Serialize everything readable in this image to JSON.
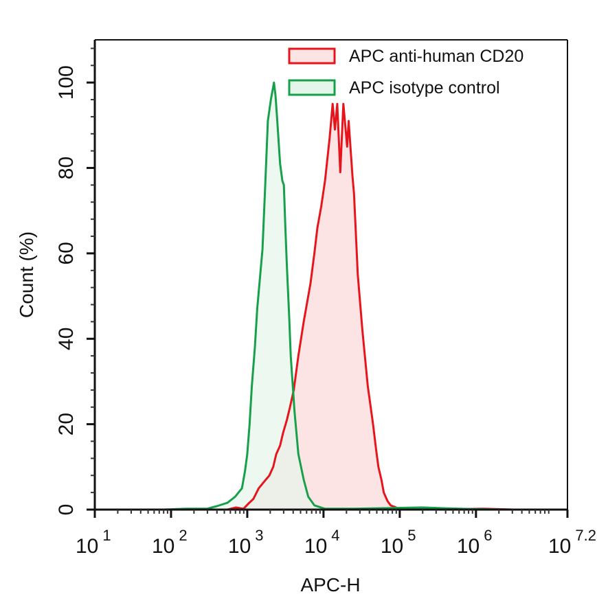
{
  "chart_data": {
    "type": "area",
    "title": "",
    "xlabel": "APC-H",
    "ylabel": "Count  (%)",
    "xscale": "log10",
    "xlim_log10": [
      1,
      7.2
    ],
    "ylim": [
      0,
      110
    ],
    "x_ticks": [
      {
        "base": "10",
        "exp": "1",
        "log": 1
      },
      {
        "base": "10",
        "exp": "2",
        "log": 2
      },
      {
        "base": "10",
        "exp": "3",
        "log": 3
      },
      {
        "base": "10",
        "exp": "4",
        "log": 4
      },
      {
        "base": "10",
        "exp": "5",
        "log": 5
      },
      {
        "base": "10",
        "exp": "6",
        "log": 6
      },
      {
        "base": "10",
        "exp": "7.2",
        "log": 7.2
      }
    ],
    "y_ticks": [
      0,
      20,
      40,
      60,
      80,
      100
    ],
    "grid": false,
    "legend": {
      "position": "top-right",
      "entries": [
        {
          "label": "APC anti-human CD20",
          "stroke": "#e8141c",
          "fill": "#fde4e4"
        },
        {
          "label": "APC isotype control",
          "stroke": "#16a04a",
          "fill": "#e4f5ea"
        }
      ]
    },
    "series": [
      {
        "name": "APC anti-human CD20",
        "stroke": "#e8141c",
        "fill": "#fde4e4",
        "points_log10x_y": [
          [
            2.74,
            0
          ],
          [
            2.85,
            0.5
          ],
          [
            2.95,
            0.2
          ],
          [
            3.02,
            1.5
          ],
          [
            3.08,
            2.5
          ],
          [
            3.15,
            5
          ],
          [
            3.22,
            6.5
          ],
          [
            3.29,
            8
          ],
          [
            3.34,
            10
          ],
          [
            3.38,
            13
          ],
          [
            3.43,
            15
          ],
          [
            3.47,
            18
          ],
          [
            3.52,
            21
          ],
          [
            3.56,
            24
          ],
          [
            3.61,
            28
          ],
          [
            3.67,
            36
          ],
          [
            3.74,
            44
          ],
          [
            3.78,
            48
          ],
          [
            3.83,
            53
          ],
          [
            3.88,
            60
          ],
          [
            3.92,
            66
          ],
          [
            3.97,
            71
          ],
          [
            4.02,
            77
          ],
          [
            4.08,
            87
          ],
          [
            4.12,
            95
          ],
          [
            4.15,
            89
          ],
          [
            4.18,
            95
          ],
          [
            4.22,
            79
          ],
          [
            4.26,
            95
          ],
          [
            4.31,
            85
          ],
          [
            4.33,
            91
          ],
          [
            4.38,
            78
          ],
          [
            4.4,
            74
          ],
          [
            4.45,
            55
          ],
          [
            4.51,
            42
          ],
          [
            4.58,
            29
          ],
          [
            4.65,
            20
          ],
          [
            4.69,
            14
          ],
          [
            4.72,
            10
          ],
          [
            4.76,
            7
          ],
          [
            4.79,
            4
          ],
          [
            4.84,
            2
          ],
          [
            4.88,
            1
          ],
          [
            4.95,
            0.5
          ],
          [
            5.01,
            0.2
          ],
          [
            5.3,
            0
          ],
          [
            6.1,
            0.2
          ],
          [
            6.5,
            0
          ]
        ]
      },
      {
        "name": "APC isotype control",
        "stroke": "#16a04a",
        "fill": "#e4f5ea",
        "points_log10x_y": [
          [
            1.9,
            0
          ],
          [
            2.2,
            0.2
          ],
          [
            2.47,
            0.2
          ],
          [
            2.6,
            0.8
          ],
          [
            2.74,
            1.6
          ],
          [
            2.84,
            3
          ],
          [
            2.93,
            5
          ],
          [
            2.97,
            9
          ],
          [
            3.0,
            13
          ],
          [
            3.03,
            20
          ],
          [
            3.06,
            29
          ],
          [
            3.1,
            38
          ],
          [
            3.13,
            47
          ],
          [
            3.17,
            55
          ],
          [
            3.2,
            61
          ],
          [
            3.24,
            78
          ],
          [
            3.27,
            91
          ],
          [
            3.31,
            96
          ],
          [
            3.35,
            100
          ],
          [
            3.37,
            97
          ],
          [
            3.39,
            92
          ],
          [
            3.43,
            81
          ],
          [
            3.46,
            77
          ],
          [
            3.48,
            76
          ],
          [
            3.5,
            66
          ],
          [
            3.52,
            57
          ],
          [
            3.55,
            45
          ],
          [
            3.57,
            36
          ],
          [
            3.62,
            23
          ],
          [
            3.67,
            13
          ],
          [
            3.74,
            7
          ],
          [
            3.77,
            5
          ],
          [
            3.8,
            3
          ],
          [
            3.88,
            1
          ],
          [
            4.02,
            0.2
          ],
          [
            4.4,
            0.2
          ],
          [
            5.0,
            0.4
          ],
          [
            5.3,
            0.5
          ],
          [
            5.6,
            0.3
          ],
          [
            6.0,
            0.1
          ],
          [
            6.4,
            0
          ]
        ]
      }
    ]
  }
}
